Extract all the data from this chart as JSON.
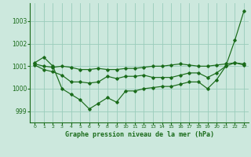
{
  "title": "Graphe pression niveau de la mer (hPa)",
  "background_color": "#cce8dd",
  "grid_color": "#99ccbb",
  "line_color": "#1a6b1a",
  "x_ticks": [
    0,
    1,
    2,
    3,
    4,
    5,
    6,
    7,
    8,
    9,
    10,
    11,
    12,
    13,
    14,
    15,
    16,
    17,
    18,
    19,
    20,
    21,
    22,
    23
  ],
  "y_ticks": [
    999,
    1000,
    1001,
    1002,
    1003
  ],
  "ylim": [
    998.5,
    1003.8
  ],
  "xlim": [
    -0.5,
    23.5
  ],
  "line1": [
    1001.15,
    1001.4,
    1001.0,
    1000.0,
    999.75,
    999.5,
    999.1,
    999.35,
    999.6,
    999.4,
    999.9,
    999.9,
    1000.0,
    1000.05,
    1000.1,
    1000.1,
    1000.2,
    1000.3,
    1000.3,
    1000.0,
    1000.4,
    1001.0,
    1002.15,
    1003.45
  ],
  "line2": [
    1001.1,
    1001.0,
    1000.95,
    1001.0,
    1000.95,
    1000.85,
    1000.85,
    1000.9,
    1000.85,
    1000.85,
    1000.9,
    1000.9,
    1000.95,
    1001.0,
    1001.0,
    1001.05,
    1001.1,
    1001.05,
    1001.0,
    1001.0,
    1001.05,
    1001.1,
    1001.15,
    1001.1
  ],
  "line3": [
    1001.05,
    1000.85,
    1000.75,
    1000.6,
    1000.3,
    1000.3,
    1000.25,
    1000.3,
    1000.55,
    1000.45,
    1000.55,
    1000.55,
    1000.6,
    1000.5,
    1000.5,
    1000.5,
    1000.6,
    1000.7,
    1000.7,
    1000.5,
    1000.7,
    1001.0,
    1001.15,
    1001.05
  ]
}
